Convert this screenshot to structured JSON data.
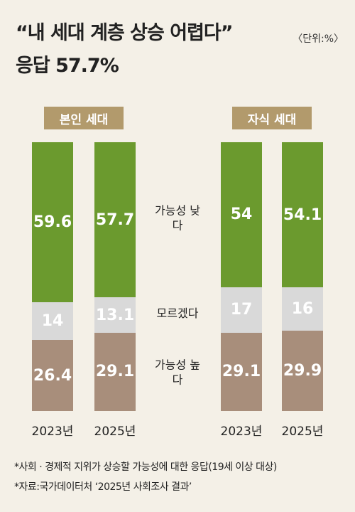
{
  "chart_data": {
    "type": "stacked-bar",
    "title": "“내 세대 계층 상승 어렵다”",
    "subtitle": "응답 57.7%",
    "unit": "〈단위:%〉",
    "groups": [
      {
        "label": "본인 세대",
        "categories": [
          0,
          1
        ]
      },
      {
        "label": "자식 세대",
        "categories": [
          2,
          3
        ]
      }
    ],
    "categories": [
      "2023년",
      "2025년",
      "2023년",
      "2025년"
    ],
    "series": [
      {
        "name": "가능성 높다",
        "color": "#a88e7b",
        "values": [
          26.4,
          29.1,
          29.1,
          29.9
        ]
      },
      {
        "name": "모르겠다",
        "color": "#d9d9d9",
        "values": [
          14,
          13.1,
          17,
          16
        ]
      },
      {
        "name": "가능성 낮다",
        "color": "#6b9a2e",
        "values": [
          59.6,
          57.7,
          54,
          54.1
        ]
      }
    ],
    "ylim": [
      0,
      100
    ],
    "notes": [
      "*사회 · 경제적 지위가 상승할 가능성에 대한 응답(19세 이상 대상)",
      "*자료:국가데이터처 ‘2025년 사회조사 결과’"
    ]
  }
}
